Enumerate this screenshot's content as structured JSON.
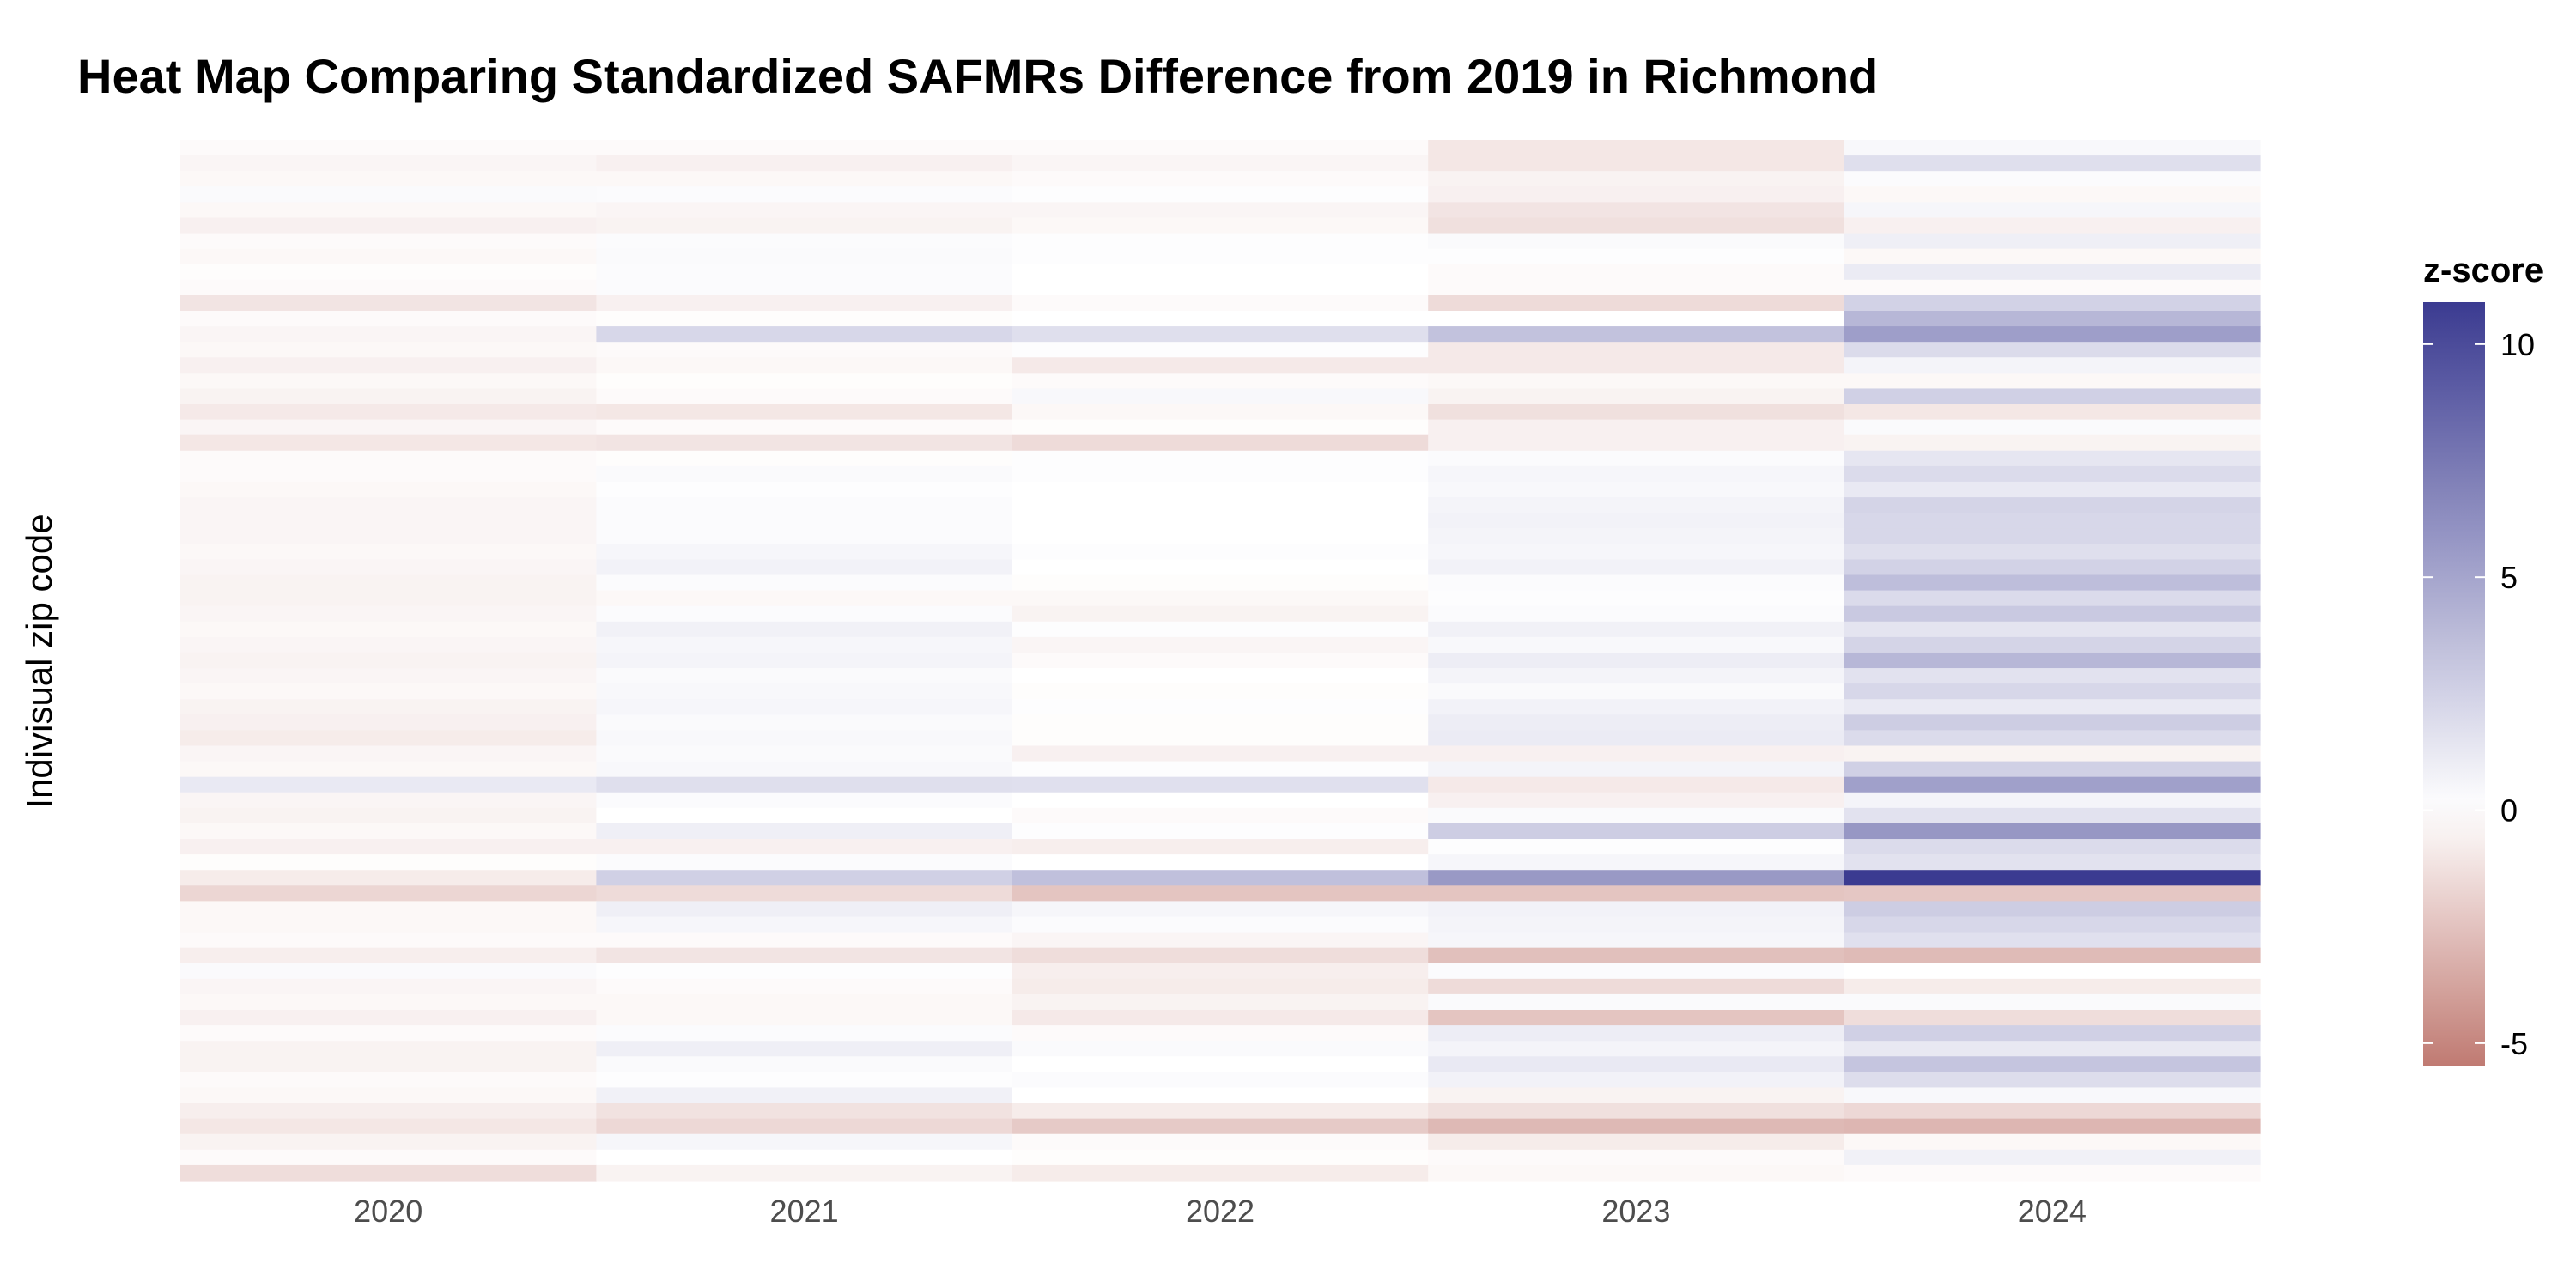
{
  "colors": {
    "low": "#c07a72",
    "mid": "#ffffff",
    "high": "#3b3b91"
  },
  "chart_data": {
    "type": "heatmap",
    "title": "Heat Map Comparing Standardized SAFMRs Difference from 2019 in Richmond",
    "xlabel": "",
    "ylabel": "Indivisual zip code",
    "categories": [
      "2020",
      "2021",
      "2022",
      "2023",
      "2024"
    ],
    "legend": {
      "title": "z-score",
      "ticks": [
        10,
        5,
        0,
        -5
      ],
      "range": [
        -5.5,
        10.9
      ],
      "position": "right"
    },
    "grid": false,
    "values": [
      [
        -0.2,
        -0.2,
        -0.2,
        -1.0,
        0.4
      ],
      [
        -0.4,
        -0.6,
        -0.4,
        -1.0,
        1.8
      ],
      [
        -0.3,
        -0.3,
        -0.2,
        -0.5,
        0.2
      ],
      [
        0.3,
        0.2,
        0.1,
        -0.6,
        -0.3
      ],
      [
        -0.3,
        -0.4,
        -0.4,
        -1.1,
        0.5
      ],
      [
        -0.6,
        -0.5,
        -0.3,
        -1.3,
        -0.6
      ],
      [
        -0.2,
        0.2,
        0.1,
        0.3,
        0.9
      ],
      [
        -0.3,
        0.3,
        0.1,
        0.1,
        -0.3
      ],
      [
        -0.1,
        0.2,
        0.0,
        -0.2,
        1.1
      ],
      [
        -0.2,
        0.2,
        0.0,
        -0.2,
        -0.2
      ],
      [
        -1.1,
        -0.6,
        -0.2,
        -1.5,
        2.5
      ],
      [
        -0.2,
        -0.1,
        0.0,
        0.0,
        4.0
      ],
      [
        -0.4,
        2.2,
        1.8,
        3.4,
        5.4
      ],
      [
        -0.3,
        -0.2,
        0.1,
        -0.9,
        2.0
      ],
      [
        -0.6,
        -0.3,
        -0.9,
        -0.9,
        0.6
      ],
      [
        -0.3,
        -0.1,
        -0.2,
        -0.3,
        -0.3
      ],
      [
        -0.5,
        -0.2,
        0.4,
        -0.5,
        2.6
      ],
      [
        -0.9,
        -1.0,
        -0.3,
        -1.3,
        -1.0
      ],
      [
        -0.4,
        -0.2,
        -0.1,
        -0.6,
        0.3
      ],
      [
        -1.0,
        -1.1,
        -1.5,
        -0.6,
        -0.5
      ],
      [
        -0.2,
        -0.1,
        0.1,
        0.2,
        1.4
      ],
      [
        -0.2,
        0.3,
        0.1,
        0.5,
        2.0
      ],
      [
        -0.3,
        0.1,
        0.0,
        0.4,
        1.2
      ],
      [
        -0.4,
        0.2,
        0.0,
        0.6,
        2.4
      ],
      [
        -0.4,
        0.2,
        0.0,
        0.7,
        2.2
      ],
      [
        -0.4,
        0.2,
        0.0,
        0.6,
        2.2
      ],
      [
        -0.3,
        0.5,
        0.1,
        0.5,
        1.8
      ],
      [
        -0.4,
        0.7,
        0.0,
        0.7,
        2.5
      ],
      [
        -0.5,
        0.2,
        -0.1,
        0.2,
        3.6
      ],
      [
        -0.5,
        -0.3,
        -0.3,
        0.1,
        2.0
      ],
      [
        -0.4,
        0.2,
        -0.5,
        0.2,
        3.0
      ],
      [
        -0.3,
        0.8,
        0.1,
        0.8,
        1.5
      ],
      [
        -0.4,
        0.5,
        -0.4,
        0.4,
        2.4
      ],
      [
        -0.5,
        0.6,
        -0.2,
        1.0,
        4.0
      ],
      [
        -0.4,
        0.3,
        0.0,
        0.6,
        1.6
      ],
      [
        -0.3,
        0.4,
        -0.1,
        0.3,
        2.2
      ],
      [
        -0.5,
        0.5,
        0.1,
        0.7,
        1.2
      ],
      [
        -0.6,
        0.3,
        -0.1,
        1.0,
        2.8
      ],
      [
        -0.8,
        0.4,
        -0.1,
        1.1,
        2.0
      ],
      [
        -0.4,
        0.3,
        -0.6,
        -0.6,
        -0.5
      ],
      [
        -0.3,
        0.4,
        0.1,
        0.6,
        2.6
      ],
      [
        1.2,
        1.8,
        1.7,
        -0.9,
        5.3
      ],
      [
        -0.4,
        0.2,
        0.0,
        -0.6,
        0.6
      ],
      [
        -0.5,
        0.0,
        -0.2,
        0.3,
        1.6
      ],
      [
        -0.3,
        0.9,
        0.1,
        2.8,
        5.8
      ],
      [
        -0.6,
        -0.6,
        -0.7,
        0.1,
        2.0
      ],
      [
        -0.1,
        0.2,
        0.0,
        0.5,
        1.6
      ],
      [
        -0.8,
        2.6,
        3.5,
        5.7,
        10.9
      ],
      [
        -1.7,
        -1.5,
        -2.4,
        -2.4,
        -2.3
      ],
      [
        -0.3,
        0.9,
        0.5,
        0.7,
        2.8
      ],
      [
        -0.3,
        0.5,
        0.2,
        0.6,
        2.2
      ],
      [
        -0.2,
        -0.2,
        -0.4,
        0.5,
        1.7
      ],
      [
        -0.7,
        -1.1,
        -1.4,
        -2.6,
        -2.8
      ],
      [
        0.3,
        0.1,
        -0.7,
        0.2,
        0.0
      ],
      [
        -0.4,
        -0.2,
        -0.8,
        -1.5,
        -0.8
      ],
      [
        -0.3,
        -0.3,
        -0.5,
        0.3,
        0.3
      ],
      [
        -0.6,
        -0.3,
        -0.9,
        -2.4,
        -1.4
      ],
      [
        -0.2,
        0.2,
        -0.2,
        1.0,
        2.6
      ],
      [
        -0.5,
        0.9,
        0.3,
        0.6,
        1.3
      ],
      [
        -0.5,
        0.3,
        0.0,
        1.2,
        3.2
      ],
      [
        -0.2,
        0.1,
        0.2,
        0.7,
        1.9
      ],
      [
        -0.3,
        0.8,
        0.0,
        -0.5,
        0.4
      ],
      [
        -0.7,
        -1.2,
        -0.8,
        -1.3,
        -1.6
      ],
      [
        -1.0,
        -1.6,
        -2.2,
        -2.9,
        -3.0
      ],
      [
        -0.5,
        0.5,
        -0.2,
        -0.8,
        -0.3
      ],
      [
        -0.2,
        0.0,
        -0.1,
        -0.2,
        0.8
      ],
      [
        -1.4,
        -0.5,
        -0.8,
        -0.3,
        -0.2
      ]
    ]
  }
}
